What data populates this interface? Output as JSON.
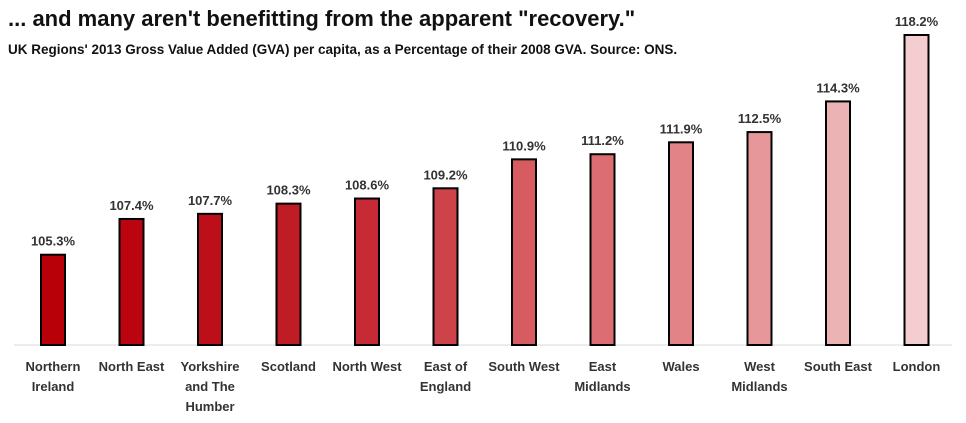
{
  "header": {
    "title": "... and many aren't benefitting from the apparent \"recovery.\"",
    "subtitle": "UK Regions' 2013 Gross Value Added (GVA) per capita, as a Percentage of their 2008 GVA. Source: ONS."
  },
  "chart_data": {
    "type": "bar",
    "title": "... and many aren't benefitting from the apparent \"recovery.\"",
    "subtitle": "UK Regions' 2013 Gross Value Added (GVA) per capita, as a Percentage of their 2008 GVA. Source: ONS.",
    "xlabel": "",
    "ylabel": "",
    "grid": false,
    "legend": "none",
    "categories": [
      [
        "Northern",
        "Ireland"
      ],
      [
        "North East"
      ],
      [
        "Yorkshire",
        "and The",
        "Humber"
      ],
      [
        "Scotland"
      ],
      [
        "North West"
      ],
      [
        "East of",
        "England"
      ],
      [
        "South West"
      ],
      [
        "East",
        "Midlands"
      ],
      [
        "Wales"
      ],
      [
        "West",
        "Midlands"
      ],
      [
        "South East"
      ],
      [
        "London"
      ]
    ],
    "values": [
      105.3,
      107.4,
      107.7,
      108.3,
      108.6,
      109.2,
      110.9,
      111.2,
      111.9,
      112.5,
      114.3,
      118.2
    ],
    "value_labels": [
      "105.3%",
      "107.4%",
      "107.7%",
      "108.3%",
      "108.6%",
      "109.2%",
      "110.9%",
      "111.2%",
      "111.9%",
      "112.5%",
      "114.3%",
      "118.2%"
    ],
    "colors": [
      "#b80009",
      "#ba0511",
      "#bd0f1a",
      "#c01c26",
      "#c62a34",
      "#ce4249",
      "#d65c62",
      "#dc6e73",
      "#e28387",
      "#e6979a",
      "#ecb3b5",
      "#f3cdcf"
    ],
    "bar_outline": "#000000",
    "ylim": [
      100,
      118.2
    ]
  }
}
